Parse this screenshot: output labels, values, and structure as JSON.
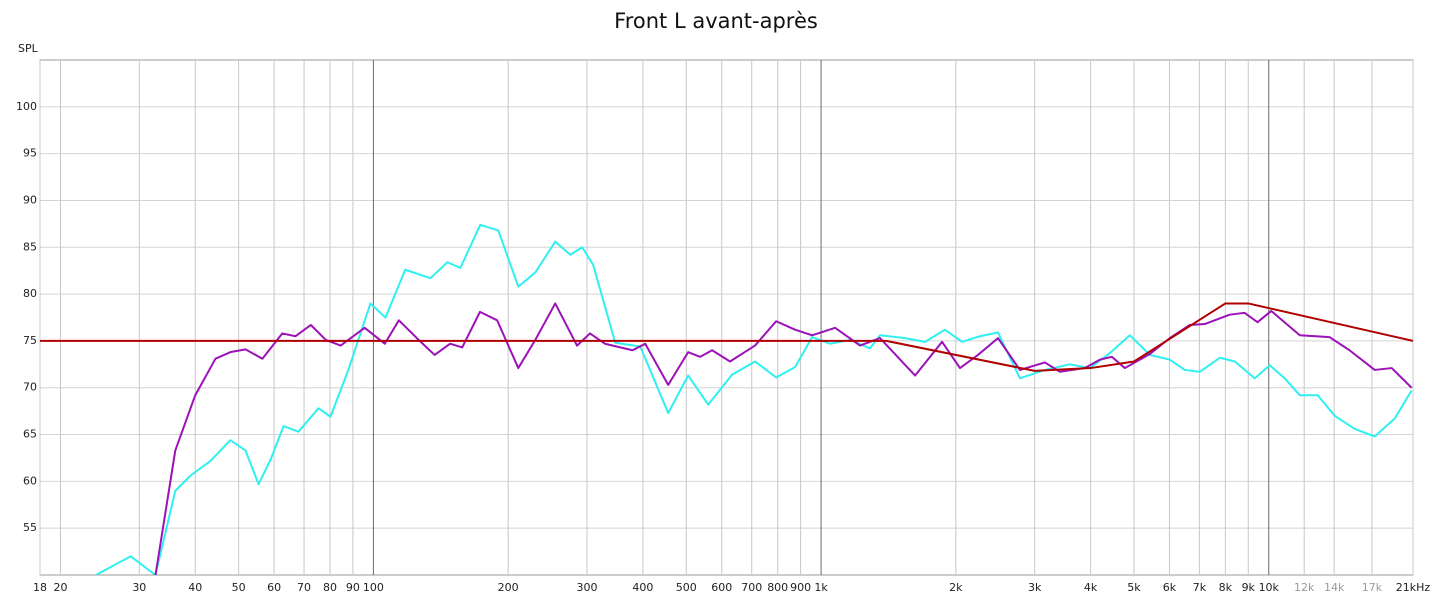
{
  "chart_data": {
    "type": "line",
    "title": "Front L avant-après",
    "y_label": "SPL",
    "xscale": "log",
    "grid": true,
    "xlim": [
      18,
      21000
    ],
    "ylim": [
      50,
      105
    ],
    "yticks": [
      55,
      60,
      65,
      70,
      75,
      80,
      85,
      90,
      95,
      100
    ],
    "xticks": [
      18,
      20,
      30,
      40,
      50,
      60,
      70,
      80,
      90,
      100,
      200,
      300,
      400,
      500,
      600,
      700,
      800,
      900,
      {
        "value": 1000,
        "label": "1k"
      },
      {
        "value": 2000,
        "label": "2k"
      },
      {
        "value": 3000,
        "label": "3k"
      },
      {
        "value": 4000,
        "label": "4k"
      },
      {
        "value": 5000,
        "label": "5k"
      },
      {
        "value": 6000,
        "label": "6k"
      },
      {
        "value": 7000,
        "label": "7k"
      },
      {
        "value": 8000,
        "label": "8k"
      },
      {
        "value": 9000,
        "label": "9k"
      },
      {
        "value": 10000,
        "label": "10k"
      },
      {
        "value": 12000,
        "label": "12k",
        "color": "#9a9a9a"
      },
      {
        "value": 14000,
        "label": "14k",
        "color": "#9a9a9a"
      },
      {
        "value": 17000,
        "label": "17k",
        "color": "#9a9a9a"
      },
      {
        "value": 21000,
        "label": "21kHz"
      }
    ],
    "series": [
      {
        "color": "#2ff0f0",
        "x": [
          24,
          28.7,
          32.6,
          36.1,
          39,
          43.3,
          47.9,
          51.8,
          55.4,
          58.9,
          63,
          68,
          75.4,
          80.2,
          87.9,
          98.5,
          106.4,
          117.8,
          134.1,
          146.3,
          156.4,
          173.3,
          190.1,
          210.7,
          229.9,
          254.8,
          275.3,
          292.7,
          309.8,
          346.9,
          394.5,
          455.5,
          504.8,
          559.6,
          633,
          712.3,
          793.6,
          875,
          955,
          1047,
          1161,
          1286,
          1354,
          1540,
          1707,
          1891,
          2064,
          2264,
          2484,
          2781,
          3162,
          3596,
          3985,
          4417,
          4895,
          5425,
          6012,
          6494,
          7015,
          7774,
          8400,
          9306,
          10052,
          10856,
          11730,
          12865,
          14040,
          15560,
          17250,
          19110,
          20850
        ],
        "values": [
          50,
          52.0,
          50,
          59,
          60.6,
          62.2,
          64.4,
          63.3,
          59.7,
          62.3,
          65.9,
          65.3,
          67.8,
          66.9,
          71.9,
          79.0,
          77.5,
          82.6,
          81.7,
          83.4,
          82.8,
          87.4,
          86.8,
          80.8,
          82.3,
          85.6,
          84.2,
          85.0,
          83.1,
          74.8,
          74.4,
          67.3,
          71.3,
          68.2,
          71.4,
          72.8,
          71.1,
          72.2,
          75.4,
          74.7,
          75.1,
          74.2,
          75.6,
          75.3,
          74.9,
          76.2,
          74.9,
          75.5,
          75.9,
          71.0,
          71.9,
          72.5,
          72.1,
          73.7,
          75.6,
          73.5,
          73.0,
          71.9,
          71.7,
          73.2,
          72.8,
          71.0,
          72.4,
          71.0,
          69.2,
          69.2,
          67.0,
          65.6,
          64.8,
          66.7,
          69.7
        ]
      },
      {
        "color": "#9c12b8",
        "x": [
          32.6,
          36.1,
          40,
          44.4,
          47.9,
          51.8,
          56.5,
          62.6,
          67,
          72.5,
          78.3,
          84.5,
          95.6,
          106,
          114,
          125,
          137,
          148.4,
          157.9,
          173,
          189,
          210.7,
          229.9,
          254.8,
          285,
          304.6,
          329,
          379,
          404.8,
          455.5,
          504.8,
          536.6,
          571,
          626,
          712,
          793.6,
          875,
          955,
          1075,
          1222,
          1354,
          1622,
          1863,
          2043,
          2241,
          2484,
          2781,
          3162,
          3416,
          3883,
          4199,
          4464,
          4770,
          5425,
          6012,
          6662,
          7195,
          8178,
          8830,
          9438,
          10130,
          11730,
          13680,
          15150,
          17250,
          18820,
          20850
        ],
        "values": [
          50,
          63.3,
          69.2,
          73.1,
          73.8,
          74.1,
          73.1,
          75.8,
          75.5,
          76.7,
          75.1,
          74.5,
          76.4,
          74.7,
          77.2,
          75.3,
          73.5,
          74.7,
          74.3,
          78.1,
          77.2,
          72.1,
          75.1,
          79.0,
          74.5,
          75.8,
          74.7,
          74.0,
          74.7,
          70.3,
          73.8,
          73.3,
          74.0,
          72.8,
          74.5,
          77.1,
          76.2,
          75.6,
          76.4,
          74.5,
          75.3,
          71.3,
          74.9,
          72.1,
          73.5,
          75.3,
          71.9,
          72.7,
          71.7,
          72.1,
          73.0,
          73.3,
          72.1,
          73.6,
          75.3,
          76.7,
          76.8,
          77.8,
          78.0,
          77.0,
          78.2,
          75.6,
          75.4,
          74.0,
          71.9,
          72.1,
          70.0
        ]
      },
      {
        "color": "#b00000",
        "x": [
          18,
          1400,
          3000,
          4000,
          5000,
          8000,
          9000,
          21000
        ],
        "values": [
          75,
          75,
          71.8,
          72.1,
          72.8,
          79,
          79,
          75
        ]
      }
    ]
  }
}
